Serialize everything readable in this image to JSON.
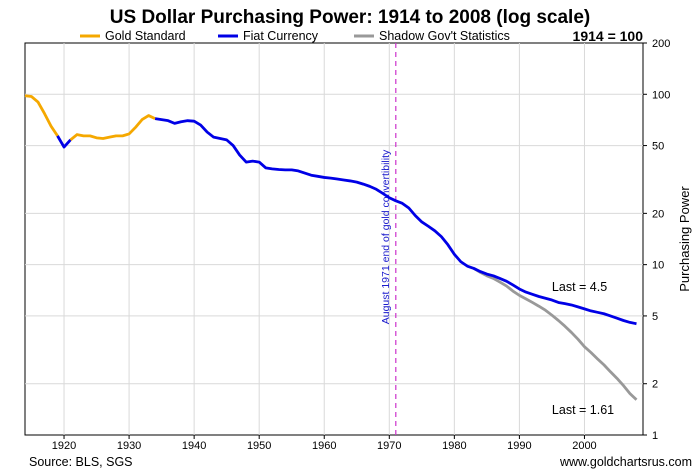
{
  "chart_data": {
    "type": "line",
    "title": "US Dollar Purchasing Power: 1914 to 2008 (log scale)",
    "ylabel": "Purchasing Power",
    "xlabel": "",
    "y_scale": "log",
    "ylim": [
      1,
      200
    ],
    "xlim": [
      1914,
      2009
    ],
    "grid": true,
    "legend_position": "top",
    "baseline_note": "1914 = 100",
    "x_ticks": [
      1920,
      1930,
      1940,
      1950,
      1960,
      1970,
      1980,
      1990,
      2000
    ],
    "y_ticks": [
      1,
      2,
      5,
      10,
      20,
      50,
      100,
      200
    ],
    "series": [
      {
        "name": "Gold Standard",
        "color": "#f5a800",
        "points": [
          [
            1914,
            98
          ],
          [
            1915,
            97
          ],
          [
            1916,
            90
          ],
          [
            1917,
            77
          ],
          [
            1918,
            65
          ],
          [
            1919,
            57
          ]
        ]
      },
      {
        "name": "Fiat Currency",
        "color": "#0000e6",
        "points": [
          [
            1919,
            57
          ],
          [
            1920,
            49
          ],
          [
            1921,
            54
          ]
        ]
      },
      {
        "name": "Gold Standard",
        "color": "#f5a800",
        "points": [
          [
            1921,
            54
          ],
          [
            1922,
            58
          ],
          [
            1923,
            57
          ],
          [
            1924,
            57
          ],
          [
            1925,
            55.5
          ],
          [
            1926,
            55
          ],
          [
            1927,
            56
          ],
          [
            1928,
            57
          ],
          [
            1929,
            57
          ],
          [
            1930,
            58.5
          ],
          [
            1931,
            64
          ],
          [
            1932,
            71
          ],
          [
            1933,
            75
          ],
          [
            1934,
            72
          ]
        ]
      },
      {
        "name": "Fiat Currency",
        "color": "#0000e6",
        "points": [
          [
            1934,
            72
          ],
          [
            1935,
            71
          ],
          [
            1936,
            70
          ],
          [
            1937,
            67.5
          ],
          [
            1938,
            69
          ],
          [
            1939,
            70
          ],
          [
            1940,
            69.5
          ],
          [
            1941,
            66
          ],
          [
            1942,
            60
          ],
          [
            1943,
            56
          ],
          [
            1944,
            55
          ],
          [
            1945,
            54
          ],
          [
            1946,
            50
          ],
          [
            1947,
            44
          ],
          [
            1948,
            40
          ],
          [
            1949,
            40.5
          ],
          [
            1950,
            40
          ],
          [
            1951,
            37
          ],
          [
            1952,
            36.5
          ],
          [
            1953,
            36.2
          ],
          [
            1954,
            36
          ],
          [
            1955,
            36
          ],
          [
            1956,
            35.5
          ],
          [
            1957,
            34.5
          ],
          [
            1958,
            33.5
          ],
          [
            1959,
            33
          ],
          [
            1960,
            32.5
          ],
          [
            1961,
            32.2
          ],
          [
            1962,
            31.8
          ],
          [
            1963,
            31.4
          ],
          [
            1964,
            31
          ],
          [
            1965,
            30.5
          ],
          [
            1966,
            29.7
          ],
          [
            1967,
            28.8
          ],
          [
            1968,
            27.7
          ],
          [
            1969,
            26.2
          ],
          [
            1970,
            24.7
          ],
          [
            1971,
            23.7
          ],
          [
            1972,
            22.9
          ],
          [
            1973,
            21.5
          ],
          [
            1974,
            19.4
          ],
          [
            1975,
            17.8
          ],
          [
            1976,
            16.8
          ],
          [
            1977,
            15.8
          ],
          [
            1978,
            14.6
          ],
          [
            1979,
            13.1
          ],
          [
            1980,
            11.5
          ],
          [
            1981,
            10.4
          ],
          [
            1982,
            9.8
          ],
          [
            1983,
            9.5
          ],
          [
            1984,
            9.1
          ],
          [
            1985,
            8.8
          ],
          [
            1986,
            8.6
          ],
          [
            1987,
            8.3
          ],
          [
            1988,
            8.0
          ],
          [
            1989,
            7.6
          ],
          [
            1990,
            7.2
          ],
          [
            1991,
            6.9
          ],
          [
            1992,
            6.7
          ],
          [
            1993,
            6.5
          ],
          [
            1994,
            6.35
          ],
          [
            1995,
            6.2
          ],
          [
            1996,
            6.0
          ],
          [
            1997,
            5.9
          ],
          [
            1998,
            5.8
          ],
          [
            1999,
            5.65
          ],
          [
            2000,
            5.5
          ],
          [
            2001,
            5.35
          ],
          [
            2002,
            5.25
          ],
          [
            2003,
            5.15
          ],
          [
            2004,
            5.0
          ],
          [
            2005,
            4.85
          ],
          [
            2006,
            4.7
          ],
          [
            2007,
            4.58
          ],
          [
            2008,
            4.5
          ]
        ]
      },
      {
        "name": "Shadow Gov't Statistics",
        "color": "#999999",
        "points": [
          [
            1983,
            9.5
          ],
          [
            1984,
            9.0
          ],
          [
            1985,
            8.6
          ],
          [
            1986,
            8.3
          ],
          [
            1987,
            7.9
          ],
          [
            1988,
            7.5
          ],
          [
            1989,
            7.0
          ],
          [
            1990,
            6.6
          ],
          [
            1991,
            6.3
          ],
          [
            1992,
            6.0
          ],
          [
            1993,
            5.7
          ],
          [
            1994,
            5.4
          ],
          [
            1995,
            5.05
          ],
          [
            1996,
            4.7
          ],
          [
            1997,
            4.35
          ],
          [
            1998,
            4.0
          ],
          [
            1999,
            3.65
          ],
          [
            2000,
            3.3
          ],
          [
            2001,
            3.05
          ],
          [
            2002,
            2.8
          ],
          [
            2003,
            2.58
          ],
          [
            2004,
            2.35
          ],
          [
            2005,
            2.15
          ],
          [
            2006,
            1.95
          ],
          [
            2007,
            1.75
          ],
          [
            2008,
            1.61
          ]
        ]
      }
    ],
    "legend": [
      {
        "name": "Gold Standard",
        "color": "#f5a800"
      },
      {
        "name": "Fiat Currency",
        "color": "#0000e6"
      },
      {
        "name": "Shadow Gov't Statistics",
        "color": "#999999"
      }
    ],
    "vertical_marker": {
      "x": 1971,
      "label": "August 1971 end of gold convertibility",
      "color": "#cc33cc"
    },
    "annotations": [
      {
        "text": "Last = 4.5",
        "x": 1995,
        "y": 7.0
      },
      {
        "text": "Last = 1.61",
        "x": 1995,
        "y": 1.33
      }
    ]
  },
  "footer": {
    "source": "Source: BLS, SGS",
    "site": "www.goldchartsrus.com"
  }
}
